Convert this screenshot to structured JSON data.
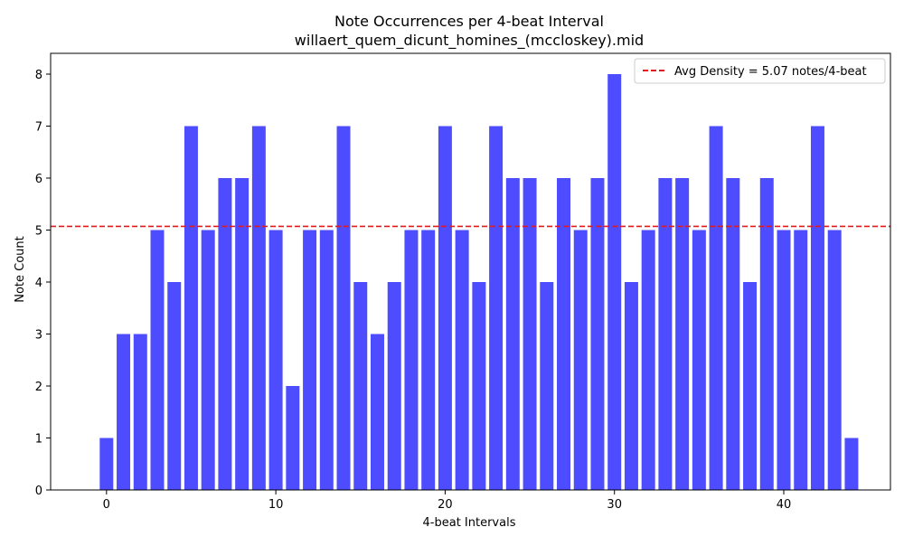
{
  "chart_data": {
    "type": "bar",
    "title": "Note Occurrences per 4-beat Interval",
    "subtitle": "willaert_quem_dicunt_homines_(mccloskey).mid",
    "xlabel": "4-beat Intervals",
    "ylabel": "Note Count",
    "x": [
      0,
      1,
      2,
      3,
      4,
      5,
      6,
      7,
      8,
      9,
      10,
      11,
      12,
      13,
      14,
      15,
      16,
      17,
      18,
      19,
      20,
      21,
      22,
      23,
      24,
      25,
      26,
      27,
      28,
      29,
      30,
      31,
      32,
      33,
      34,
      35,
      36,
      37,
      38,
      39,
      40,
      41,
      42,
      43,
      44
    ],
    "values": [
      1,
      3,
      3,
      5,
      4,
      7,
      5,
      6,
      6,
      7,
      5,
      2,
      5,
      5,
      7,
      4,
      3,
      4,
      5,
      5,
      7,
      5,
      4,
      7,
      6,
      6,
      4,
      6,
      5,
      6,
      8,
      4,
      5,
      6,
      6,
      5,
      7,
      6,
      4,
      6,
      5,
      5,
      7,
      5,
      1
    ],
    "xlim": [
      -3.3,
      46.3
    ],
    "ylim": [
      0,
      8.4
    ],
    "xticks": [
      0,
      10,
      20,
      30,
      40
    ],
    "yticks": [
      0,
      1,
      2,
      3,
      4,
      5,
      6,
      7,
      8
    ],
    "bar_color": "#4d4dff",
    "average_line": {
      "value": 5.07,
      "label": "Avg Density = 5.07 notes/4-beat",
      "color": "#e31a1c",
      "style": "dashed"
    },
    "legend_position": "top-right",
    "grid": false
  }
}
